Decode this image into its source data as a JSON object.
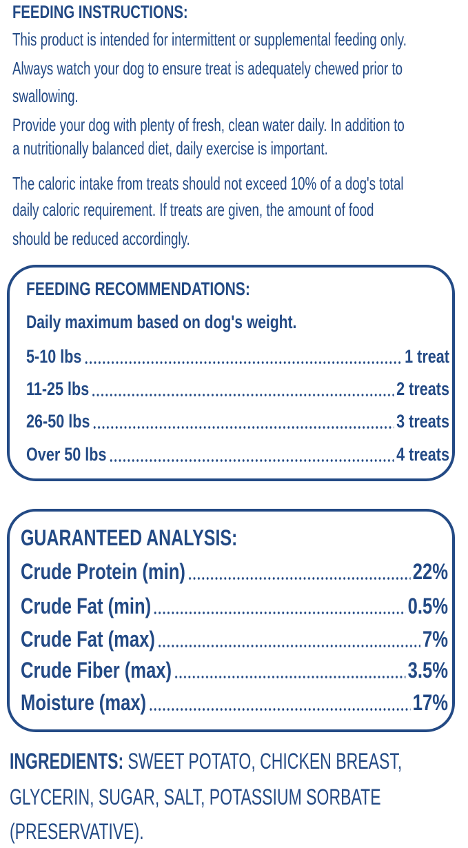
{
  "feeding_instructions": {
    "title": "FEEDING INSTRUCTIONS:",
    "paragraphs": [
      [
        "This product is intended for intermittent or supplemental feeding only."
      ],
      [
        "Always watch your dog to ensure treat is adequately chewed prior to",
        "swallowing."
      ],
      [
        "Provide your dog with plenty of fresh, clean water daily. In addition to",
        "a nutritionally balanced diet, daily exercise is important."
      ],
      [
        "The caloric intake from treats should not exceed 10% of a dog's total",
        "daily caloric requirement. If treats are given, the amount of food",
        "should be reduced accordingly."
      ]
    ]
  },
  "feeding_recommendations": {
    "title": "FEEDING RECOMMENDATIONS:",
    "subtitle": "Daily maximum based on dog's weight.",
    "rows": [
      {
        "label": "5-10 lbs",
        "value": "1 treat"
      },
      {
        "label": "11-25 lbs",
        "value": "2 treats"
      },
      {
        "label": "26-50 lbs",
        "value": "3 treats"
      },
      {
        "label": "Over 50 lbs",
        "value": "4 treats"
      }
    ]
  },
  "guaranteed_analysis": {
    "title": "GUARANTEED ANALYSIS:",
    "rows": [
      {
        "label": "Crude Protein (min)",
        "value": "22%"
      },
      {
        "label": "Crude Fat (min)",
        "value": "0.5%"
      },
      {
        "label": "Crude Fat (max)",
        "value": "7%"
      },
      {
        "label": "Crude Fiber (max)",
        "value": "3.5%"
      },
      {
        "label": "Moisture (max)",
        "value": "17%"
      }
    ]
  },
  "ingredients": {
    "label": "INGREDIENTS:",
    "lines": [
      "SWEET POTATO, CHICKEN BREAST,",
      "GLYCERIN, SUGAR, SALT, POTASSIUM SORBATE",
      "(PRESERVATIVE)."
    ]
  }
}
